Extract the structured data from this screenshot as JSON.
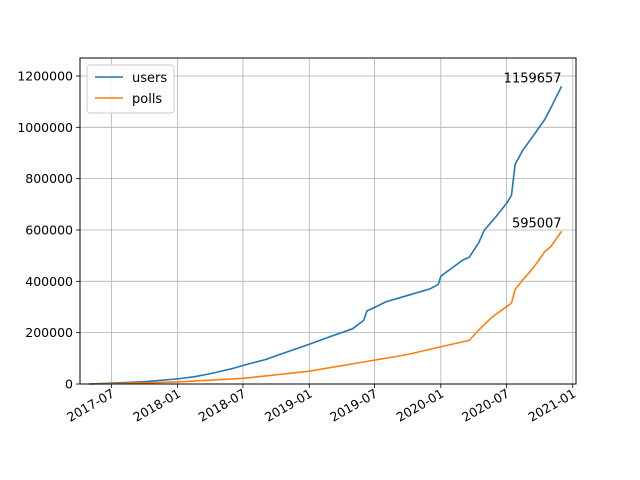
{
  "chart_data": {
    "type": "line",
    "title": "",
    "xlabel": "",
    "ylabel": "",
    "grid": true,
    "legend_position": "top-left",
    "xlim": [
      "2017-04-05",
      "2021-01-10"
    ],
    "ylim": [
      0,
      1270000
    ],
    "x_ticks": [
      "2017-07-01",
      "2018-01-01",
      "2018-07-01",
      "2019-01-01",
      "2019-07-01",
      "2020-01-01",
      "2020-07-01",
      "2021-01-01"
    ],
    "x_tick_labels": [
      "2017-07",
      "2018-01",
      "2018-07",
      "2019-01",
      "2019-07",
      "2020-01",
      "2020-07",
      "2021-01"
    ],
    "y_ticks": [
      0,
      200000,
      400000,
      600000,
      800000,
      1000000,
      1200000
    ],
    "y_tick_labels": [
      "0",
      "200000",
      "400000",
      "600000",
      "800000",
      "1000000",
      "1200000"
    ],
    "series": [
      {
        "name": "users",
        "color": "#1f77b4",
        "points": [
          [
            "2017-05-01",
            0
          ],
          [
            "2017-07-01",
            3000
          ],
          [
            "2017-10-01",
            9000
          ],
          [
            "2018-01-01",
            20000
          ],
          [
            "2018-02-15",
            28000
          ],
          [
            "2018-04-01",
            40000
          ],
          [
            "2018-06-01",
            60000
          ],
          [
            "2018-07-01",
            72000
          ],
          [
            "2018-09-01",
            95000
          ],
          [
            "2018-11-01",
            125000
          ],
          [
            "2019-01-01",
            155000
          ],
          [
            "2019-03-01",
            185000
          ],
          [
            "2019-05-01",
            215000
          ],
          [
            "2019-06-01",
            248000
          ],
          [
            "2019-06-10",
            285000
          ],
          [
            "2019-07-01",
            298000
          ],
          [
            "2019-08-01",
            320000
          ],
          [
            "2019-10-01",
            345000
          ],
          [
            "2019-12-01",
            370000
          ],
          [
            "2019-12-25",
            388000
          ],
          [
            "2020-01-01",
            420000
          ],
          [
            "2020-02-01",
            452000
          ],
          [
            "2020-03-01",
            482000
          ],
          [
            "2020-03-20",
            494000
          ],
          [
            "2020-04-15",
            550000
          ],
          [
            "2020-05-01",
            600000
          ],
          [
            "2020-06-01",
            650000
          ],
          [
            "2020-07-01",
            703000
          ],
          [
            "2020-07-15",
            735000
          ],
          [
            "2020-07-25",
            855000
          ],
          [
            "2020-08-15",
            910000
          ],
          [
            "2020-09-15",
            970000
          ],
          [
            "2020-10-15",
            1030000
          ],
          [
            "2020-11-01",
            1075000
          ],
          [
            "2020-12-01",
            1159657
          ]
        ]
      },
      {
        "name": "polls",
        "color": "#ff7f0e",
        "points": [
          [
            "2017-05-01",
            0
          ],
          [
            "2017-07-01",
            1000
          ],
          [
            "2018-01-01",
            8000
          ],
          [
            "2018-07-01",
            22000
          ],
          [
            "2019-01-01",
            50000
          ],
          [
            "2019-07-01",
            93000
          ],
          [
            "2019-10-01",
            115000
          ],
          [
            "2020-01-01",
            145000
          ],
          [
            "2020-03-20",
            170000
          ],
          [
            "2020-04-15",
            210000
          ],
          [
            "2020-05-20",
            258000
          ],
          [
            "2020-06-20",
            290000
          ],
          [
            "2020-07-15",
            315000
          ],
          [
            "2020-07-25",
            368000
          ],
          [
            "2020-08-15",
            405000
          ],
          [
            "2020-09-15",
            455000
          ],
          [
            "2020-10-15",
            515000
          ],
          [
            "2020-11-01",
            535000
          ],
          [
            "2020-12-01",
            595007
          ]
        ]
      }
    ],
    "annotations": [
      {
        "text": "1159657",
        "x": "2020-12-01",
        "y": 1159657
      },
      {
        "text": "595007",
        "x": "2020-12-01",
        "y": 595007
      }
    ]
  }
}
